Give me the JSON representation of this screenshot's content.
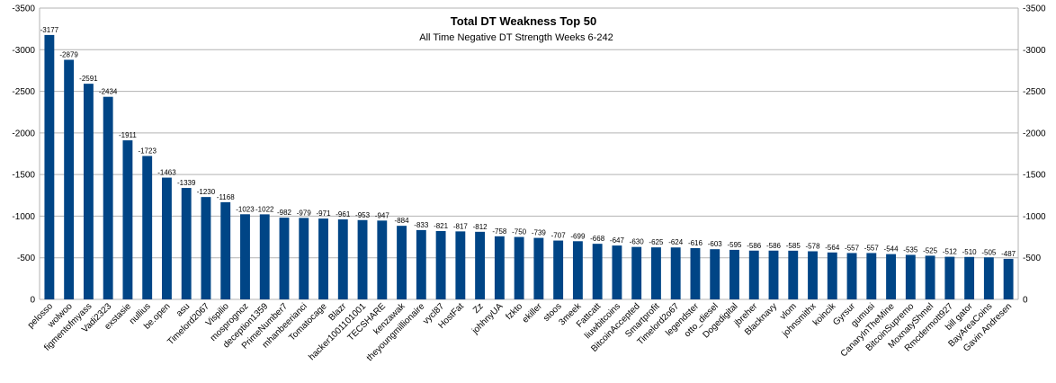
{
  "chart_data": {
    "type": "bar",
    "title": "Total DT Weakness Top 50",
    "subtitle": "All Time Negative DT Strength Weeks 6-242",
    "xlabel": "",
    "ylabel": "",
    "ylim": [
      0,
      -3500
    ],
    "y_axis_inverted": true,
    "y_ticks": [
      0,
      -500,
      -1000,
      -1500,
      -2000,
      -2500,
      -3000,
      -3500
    ],
    "y_axis_both_sides": true,
    "grid": "horizontal",
    "legend": "none",
    "bar_color": "#004586",
    "categories": [
      "pelosso",
      "wolwoo",
      "figmentofmyass",
      "Vadi2323",
      "exstasie",
      "nullius",
      "be.open",
      "asu",
      "Timelord2067",
      "Vispilio",
      "mosprognoz",
      "deception1359",
      "PrimeNumber7",
      "mhanbeerianci",
      "Tomatocage",
      "Blazr",
      "hacker1001101001",
      "TECSHARE",
      "kenzawak",
      "theyoungmillionaire",
      "vycl87",
      "HostFat",
      "Zz",
      "johhnyUA",
      "fzkto",
      "ekiller",
      "stoos",
      "3meek",
      "Fattcatt",
      "liuwbitcoins",
      "BitcoinAccepted",
      "Smartprofit",
      "Timelord2o67",
      "legendster",
      "otto_diesel",
      "Dogedigital",
      "jbreher",
      "Blacknavy",
      "vlom",
      "johnsmithx",
      "koincik",
      "Gyrsur",
      "gumusi",
      "CanaryInTheMine",
      "BitcoinSupremo",
      "MoxnatyShmel",
      "Rmcdermott927",
      "bill gator",
      "BayAreaCoins",
      "Gavin Andresen"
    ],
    "values": [
      -3177,
      -2879,
      -2591,
      -2434,
      -1911,
      -1723,
      -1463,
      -1339,
      -1230,
      -1168,
      -1023,
      -1022,
      -982,
      -979,
      -971,
      -961,
      -953,
      -947,
      -884,
      -833,
      -821,
      -817,
      -812,
      -758,
      -750,
      -739,
      -707,
      -699,
      -668,
      -647,
      -630,
      -625,
      -624,
      -616,
      -603,
      -595,
      -586,
      -586,
      -585,
      -578,
      -564,
      -557,
      -557,
      -544,
      -535,
      -525,
      -512,
      -510,
      -505,
      -487
    ]
  }
}
